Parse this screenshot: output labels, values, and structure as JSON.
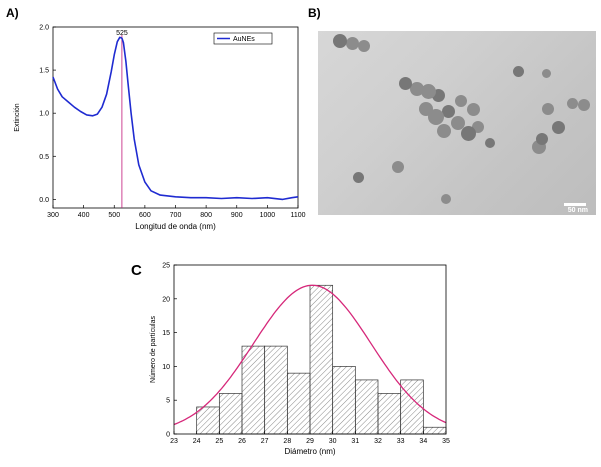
{
  "panels": {
    "a_label": "A)",
    "b_label": "B)",
    "c_label": "C"
  },
  "chart_data": [
    {
      "type": "line",
      "xlabel": "Longitud de onda (nm)",
      "ylabel": "Extinción",
      "xlim": [
        300,
        1100
      ],
      "ylim": [
        -0.1,
        2.0
      ],
      "x_ticks": [
        "300",
        "400",
        "500",
        "600",
        "700",
        "800",
        "900",
        "1000",
        "1100"
      ],
      "y_ticks": [
        "0.0",
        "0.5",
        "1.0",
        "1.5",
        "2.0"
      ],
      "peak_label": "525",
      "peak_x": 525,
      "legend": "AuNEs",
      "legend_position": "top-right",
      "line_color": "#1f2bd1",
      "marker_color": "#c2187a",
      "series": [
        {
          "name": "AuNEs",
          "x": [
            300,
            315,
            330,
            350,
            370,
            390,
            410,
            430,
            445,
            460,
            475,
            490,
            500,
            510,
            518,
            525,
            530,
            538,
            545,
            555,
            565,
            580,
            600,
            620,
            650,
            700,
            750,
            800,
            850,
            900,
            950,
            1000,
            1050,
            1080,
            1100
          ],
          "y": [
            1.42,
            1.28,
            1.19,
            1.13,
            1.07,
            1.02,
            0.98,
            0.97,
            0.99,
            1.07,
            1.22,
            1.48,
            1.68,
            1.83,
            1.88,
            1.87,
            1.82,
            1.6,
            1.35,
            1.0,
            0.7,
            0.4,
            0.2,
            0.1,
            0.05,
            0.03,
            0.02,
            0.02,
            0.01,
            0.02,
            0.01,
            0.02,
            0.0,
            0.02,
            0.03
          ]
        }
      ]
    },
    {
      "type": "bar",
      "xlabel": "Diámetro (nm)",
      "ylabel": "Número de partículas",
      "xlim": [
        23,
        35
      ],
      "ylim": [
        0,
        25
      ],
      "x_ticks": [
        "23",
        "24",
        "25",
        "26",
        "27",
        "28",
        "29",
        "30",
        "31",
        "32",
        "33",
        "34",
        "35"
      ],
      "y_ticks": [
        "0",
        "5",
        "10",
        "15",
        "20",
        "25"
      ],
      "bin_edges": [
        24,
        25,
        26,
        27,
        28,
        29,
        30,
        31,
        32,
        33,
        34,
        35
      ],
      "values": [
        4,
        6,
        13,
        13,
        9,
        22,
        10,
        8,
        6,
        8,
        1
      ],
      "fit": {
        "type": "gaussian",
        "mean": 29.1,
        "sigma": 2.6,
        "amplitude": 22,
        "color": "#d6287a"
      }
    }
  ],
  "tem_image": {
    "scale_label": "50 nm"
  }
}
